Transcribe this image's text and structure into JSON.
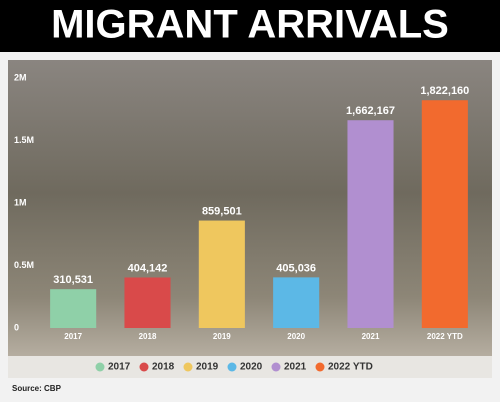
{
  "chart_data": {
    "type": "bar",
    "title": "MIGRANT ARRIVALS",
    "source": "Source: CBP",
    "categories": [
      "2017",
      "2018",
      "2019",
      "2020",
      "2021",
      "2022 YTD"
    ],
    "values": [
      310531,
      404142,
      859501,
      405036,
      1662167,
      1822160
    ],
    "value_labels": [
      "310,531",
      "404,142",
      "859,501",
      "405,036",
      "1,662,167",
      "1,822,160"
    ],
    "colors": [
      "#8fd0a8",
      "#d94a4a",
      "#efc75e",
      "#5cb8e6",
      "#b18fd0",
      "#f26a2e"
    ],
    "ylim": [
      0,
      2000000
    ],
    "yticks": [
      0,
      {
        "value": 500000,
        "label": "0.5M"
      },
      {
        "value": 1000000,
        "label": "1M"
      },
      {
        "value": 1500000,
        "label": "1.5M"
      },
      {
        "value": 2000000,
        "label": "2M"
      }
    ],
    "grid": false,
    "legend": "bottom"
  }
}
